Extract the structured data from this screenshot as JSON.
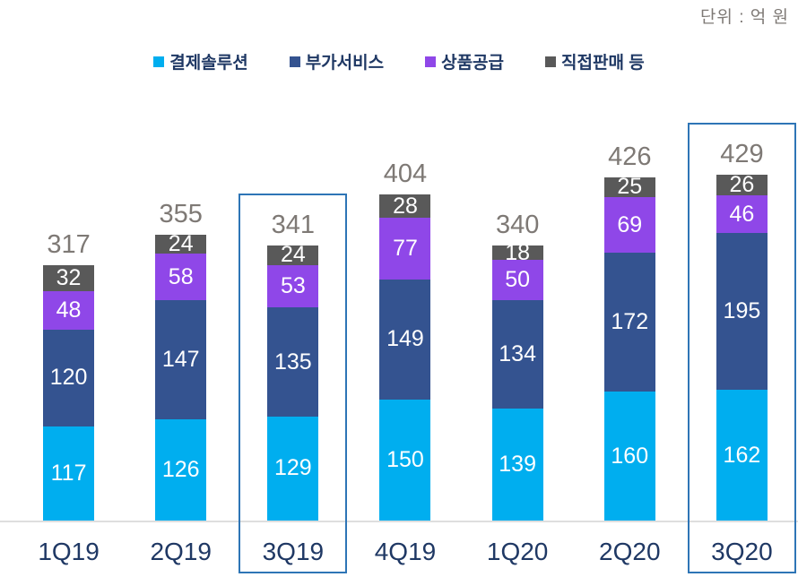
{
  "unit_label": "단위 : 억 원",
  "colors": {
    "series_payment": "#00aeef",
    "series_vas": "#345390",
    "series_goods": "#8f47e8",
    "series_direct": "#595959",
    "total_label": "#7e7975",
    "axis_label": "#1f3864",
    "legend_text": "#1f3864",
    "axis_line": "#dedede",
    "highlight_border": "#2e75b6",
    "segment_label": "#ffffff"
  },
  "chart_data": {
    "type": "bar",
    "stacked": true,
    "unit": "억 원",
    "legend_position": "top",
    "grid": false,
    "categories": [
      "1Q19",
      "2Q19",
      "3Q19",
      "4Q19",
      "1Q20",
      "2Q20",
      "3Q20"
    ],
    "series": [
      {
        "name": "결제솔루션",
        "color": "#00aeef",
        "values": [
          117,
          126,
          129,
          150,
          139,
          160,
          162
        ]
      },
      {
        "name": "부가서비스",
        "color": "#345390",
        "values": [
          120,
          147,
          135,
          149,
          134,
          172,
          195
        ]
      },
      {
        "name": "상품공급",
        "color": "#8f47e8",
        "values": [
          48,
          58,
          53,
          77,
          50,
          69,
          46
        ]
      },
      {
        "name": "직접판매 등",
        "color": "#595959",
        "values": [
          32,
          24,
          24,
          28,
          18,
          25,
          26
        ]
      }
    ],
    "totals": [
      317,
      355,
      341,
      404,
      340,
      426,
      429
    ],
    "highlighted_categories": [
      "3Q19",
      "3Q20"
    ]
  }
}
